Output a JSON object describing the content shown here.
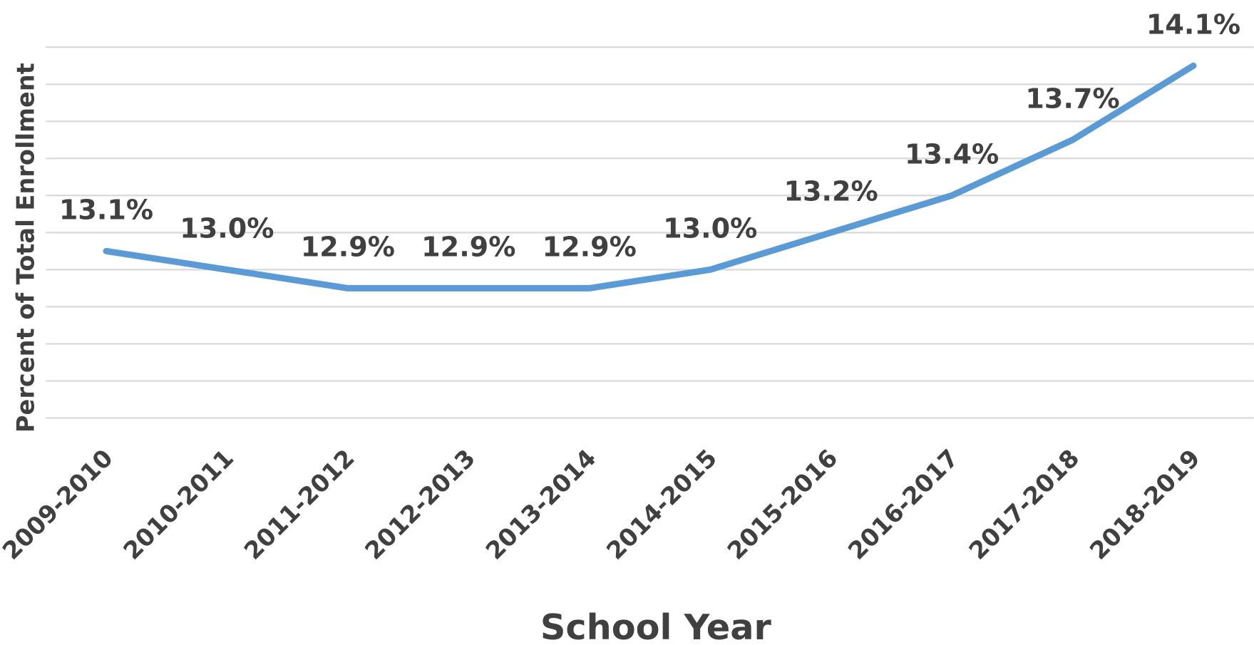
{
  "chart_data": {
    "type": "line",
    "categories": [
      "2009-2010",
      "2010-2011",
      "2011-2012",
      "2012-2013",
      "2013-2014",
      "2014-2015",
      "2015-2016",
      "2016-2017",
      "2017-2018",
      "2018-2019"
    ],
    "series": [
      {
        "color": "#5b9bd5",
        "values": [
          13.1,
          13.0,
          12.9,
          12.9,
          12.9,
          13.0,
          13.2,
          13.4,
          13.7,
          14.1
        ],
        "value_labels": [
          "13.1%",
          "13.0%",
          "12.9%",
          "12.9%",
          "12.9%",
          "13.0%",
          "13.2%",
          "13.4%",
          "13.7%",
          "14.1%"
        ]
      }
    ],
    "x_label": "School Year",
    "y_label": "Percent of Total Enrollment",
    "ylim": [
      12.2,
      14.2
    ],
    "yticks": [
      12.2,
      12.4,
      12.6,
      12.8,
      13.0,
      13.2,
      13.4,
      13.6,
      13.8,
      14.0,
      14.2
    ],
    "grid": true
  }
}
